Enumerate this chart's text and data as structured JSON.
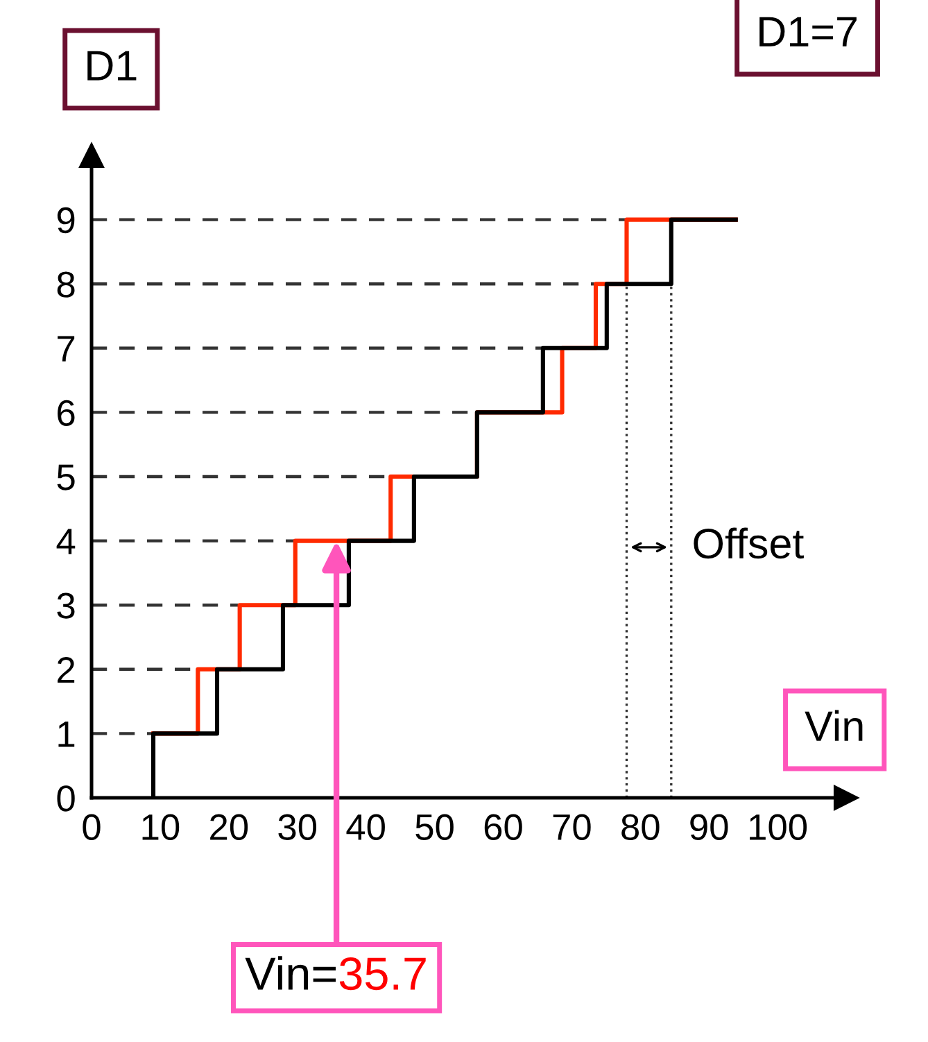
{
  "chart_data": {
    "type": "step",
    "xlabel": "Vin",
    "ylabel": "D1",
    "series": [
      {
        "color": "#ff2a00",
        "x": [
          9,
          15.5,
          21.6,
          29.7,
          43.6,
          56.2,
          68.6,
          73.5,
          78,
          93.9
        ],
        "values": [
          1,
          2,
          3,
          4,
          5,
          6,
          7,
          8,
          9,
          9
        ]
      },
      {
        "color": "#000000",
        "x": [
          9,
          9,
          18.3,
          27.9,
          37.5,
          47,
          56.2,
          65.8,
          75.1,
          84.5,
          93.9
        ],
        "values": [
          0,
          1,
          2,
          3,
          4,
          5,
          6,
          7,
          8,
          9,
          9
        ]
      }
    ],
    "xlim": [
      0,
      110
    ],
    "ylim": [
      0,
      10
    ],
    "xticks": [
      0,
      10,
      20,
      30,
      40,
      50,
      60,
      70,
      80,
      90,
      100
    ],
    "yticks": [
      0,
      1,
      2,
      3,
      4,
      5,
      6,
      7,
      8,
      9
    ],
    "ref_lines": [
      {
        "axis": "y",
        "value": 1,
        "color": "#333333",
        "line_style": "dashed"
      },
      {
        "axis": "y",
        "value": 2,
        "color": "#333333",
        "line_style": "dashed"
      },
      {
        "axis": "y",
        "value": 3,
        "color": "#333333",
        "line_style": "dashed"
      },
      {
        "axis": "y",
        "value": 4,
        "color": "#333333",
        "line_style": "dashed"
      },
      {
        "axis": "y",
        "value": 5,
        "color": "#333333",
        "line_style": "dashed"
      },
      {
        "axis": "y",
        "value": 6,
        "color": "#333333",
        "line_style": "dashed"
      },
      {
        "axis": "y",
        "value": 7,
        "color": "#333333",
        "line_style": "dashed"
      },
      {
        "axis": "y",
        "value": 8,
        "color": "#333333",
        "line_style": "dashed"
      },
      {
        "axis": "y",
        "value": 9,
        "color": "#333333",
        "line_style": "dashed"
      },
      {
        "axis": "x",
        "value": 78,
        "color": "#333333",
        "line_style": "dotted"
      },
      {
        "axis": "x",
        "value": 84.5,
        "color": "#333333",
        "line_style": "dotted"
      }
    ],
    "annotations": [
      "Offset",
      {
        "text": "Vin=35.7",
        "x": 35.7,
        "y": 4
      },
      "D1=7"
    ],
    "grid": false,
    "line_style": "solid"
  }
}
